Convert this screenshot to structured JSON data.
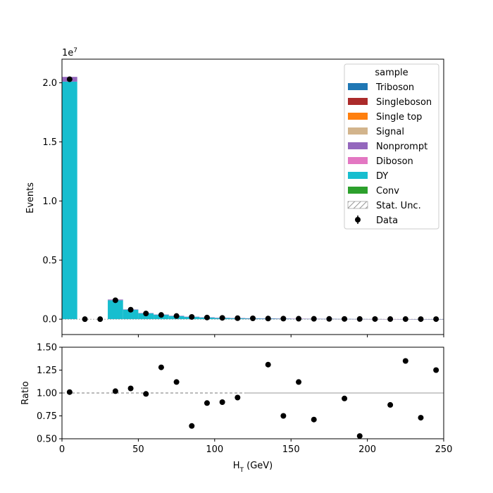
{
  "chart_data": [
    {
      "type": "bar",
      "panel": "main",
      "stacked": true,
      "ylabel": "Events",
      "y_scale_label": "1e7",
      "xlim": [
        0,
        250
      ],
      "ylim": [
        -1300000,
        22000000
      ],
      "bin_edges": [
        0,
        10,
        20,
        30,
        40,
        50,
        60,
        70,
        80,
        90,
        100,
        110,
        120,
        130,
        140,
        150,
        160,
        170,
        180,
        190,
        200,
        210,
        220,
        230,
        240,
        250
      ],
      "yticks": [
        0,
        5000000,
        10000000,
        15000000,
        20000000
      ],
      "ytick_labels": [
        "0.0",
        "0.5",
        "1.0",
        "1.5",
        "2.0"
      ],
      "series": [
        {
          "name": "DY",
          "color": "#17becf",
          "values": [
            20100000,
            0,
            0,
            1600000,
            800000,
            500000,
            380000,
            280000,
            200000,
            150000,
            110000,
            90000,
            75000,
            60000,
            50000,
            40000,
            32000,
            26000,
            21000,
            17000,
            14000,
            11000,
            9000,
            7000,
            6000
          ]
        },
        {
          "name": "Nonprompt",
          "color": "#9467bd",
          "values": [
            400000,
            0,
            0,
            60000,
            30000,
            15000,
            10000,
            7000,
            5000,
            4000,
            3000,
            2500,
            2000,
            1600,
            1300,
            1000,
            800,
            600,
            500,
            400,
            300,
            250,
            200,
            150,
            100
          ]
        }
      ],
      "data_points": {
        "name": "Data",
        "x": [
          5,
          15,
          25,
          35,
          45,
          55,
          65,
          75,
          85,
          95,
          105,
          115,
          125,
          135,
          145,
          155,
          165,
          175,
          185,
          195,
          205,
          215,
          225,
          235,
          245
        ],
        "y": [
          20300000,
          0,
          0,
          1600000,
          800000,
          480000,
          360000,
          270000,
          190000,
          140000,
          110000,
          85000,
          70000,
          55000,
          45000,
          38000,
          30000,
          24000,
          20000,
          15000,
          13000,
          10000,
          9000,
          6000,
          5000
        ]
      },
      "legend": {
        "title": "sample",
        "placement": "upper-right",
        "entries": [
          {
            "label": "Triboson",
            "color": "#1f77b4",
            "kind": "patch"
          },
          {
            "label": "Singleboson",
            "color": "#ab2b2b",
            "kind": "patch"
          },
          {
            "label": "Single top",
            "color": "#ff7f0e",
            "kind": "patch"
          },
          {
            "label": "Signal",
            "color": "#d2b48c",
            "kind": "patch"
          },
          {
            "label": "Nonprompt",
            "color": "#9467bd",
            "kind": "patch"
          },
          {
            "label": "Diboson",
            "color": "#e377c2",
            "kind": "patch"
          },
          {
            "label": "DY",
            "color": "#17becf",
            "kind": "patch"
          },
          {
            "label": "Conv",
            "color": "#2ca02c",
            "kind": "patch"
          },
          {
            "label": "Stat. Unc.",
            "color": "#777777",
            "kind": "hatch"
          },
          {
            "label": "Data",
            "color": "#000000",
            "kind": "errorpoint"
          }
        ]
      }
    },
    {
      "type": "scatter",
      "panel": "ratio",
      "xlabel": "H",
      "xlabel_sub": "T",
      "xlabel_unit": " (GeV)",
      "ylabel": "Ratio",
      "xlim": [
        0,
        250
      ],
      "ylim": [
        0.5,
        1.5
      ],
      "xticks": [
        0,
        50,
        100,
        150,
        200,
        250
      ],
      "xtick_labels": [
        "0",
        "50",
        "100",
        "150",
        "200",
        "250"
      ],
      "yticks": [
        0.5,
        0.75,
        1.0,
        1.25,
        1.5
      ],
      "ytick_labels": [
        "0.50",
        "0.75",
        "1.00",
        "1.25",
        "1.50"
      ],
      "reference_line": 1.0,
      "x": [
        5,
        35,
        45,
        55,
        65,
        75,
        85,
        95,
        105,
        115,
        135,
        145,
        155,
        165,
        185,
        195,
        215,
        225,
        235,
        245
      ],
      "y": [
        1.01,
        1.02,
        1.05,
        0.99,
        1.28,
        1.12,
        0.64,
        0.89,
        0.9,
        0.95,
        1.31,
        0.75,
        1.12,
        0.71,
        0.94,
        0.53,
        0.87,
        1.35,
        0.73,
        1.25
      ]
    }
  ]
}
